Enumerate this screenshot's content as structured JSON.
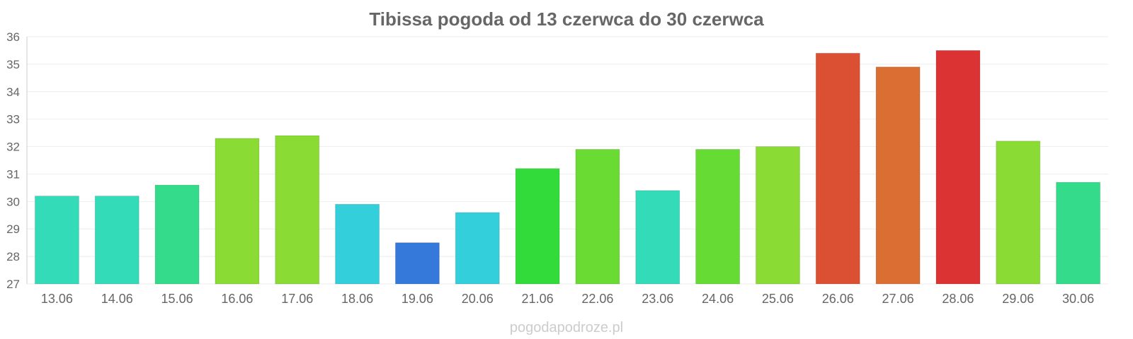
{
  "chart_data": {
    "type": "bar",
    "title": "Tibissa pogoda od 13 czerwca do 30 czerwca",
    "categories": [
      "13.06",
      "14.06",
      "15.06",
      "16.06",
      "17.06",
      "18.06",
      "19.06",
      "20.06",
      "21.06",
      "22.06",
      "23.06",
      "24.06",
      "25.06",
      "26.06",
      "27.06",
      "28.06",
      "29.06",
      "30.06"
    ],
    "values": [
      30.2,
      30.2,
      30.6,
      32.3,
      32.4,
      29.9,
      28.5,
      29.6,
      31.2,
      31.9,
      30.4,
      31.9,
      32.0,
      35.4,
      34.9,
      35.5,
      32.2,
      30.7
    ],
    "colors": [
      "#33dbb9",
      "#33dbb9",
      "#33db8a",
      "#8adb33",
      "#8adb33",
      "#33cfdb",
      "#3579db",
      "#33cfdb",
      "#33db3a",
      "#6adb33",
      "#33dbb9",
      "#66db33",
      "#8adb33",
      "#db5033",
      "#db6e33",
      "#db3333",
      "#8adb33",
      "#33db8a"
    ],
    "ylim": [
      27,
      36
    ],
    "yticks": [
      "27",
      "28",
      "29",
      "30",
      "31",
      "32",
      "33",
      "34",
      "35",
      "36"
    ],
    "xlabel": "",
    "ylabel": "",
    "grid": true,
    "legend": "none"
  },
  "watermark": "pogodapodroze.pl"
}
